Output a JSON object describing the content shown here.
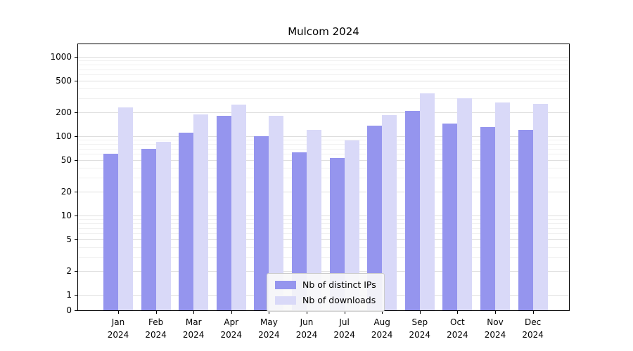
{
  "chart_data": {
    "type": "bar",
    "title": "Mulcom 2024",
    "scale": "symlog",
    "grid": true,
    "legend_position": "lower center inside plot",
    "categories": [
      "Jan 2024",
      "Feb 2024",
      "Mar 2024",
      "Apr 2024",
      "May 2024",
      "Jun 2024",
      "Jul 2024",
      "Aug 2024",
      "Sep 2024",
      "Oct 2024",
      "Nov 2024",
      "Dec 2024"
    ],
    "series": [
      {
        "name": "Nb of distinct IPs",
        "color": "#9595ee",
        "values": [
          60,
          70,
          110,
          180,
          100,
          62,
          53,
          135,
          210,
          145,
          130,
          120
        ]
      },
      {
        "name": "Nb of downloads",
        "color": "#d9d9f8",
        "values": [
          230,
          85,
          190,
          250,
          180,
          120,
          88,
          185,
          350,
          300,
          265,
          255
        ]
      }
    ],
    "yticks": [
      0,
      1,
      2,
      5,
      10,
      20,
      50,
      100,
      200,
      500,
      1000
    ],
    "ylim": [
      0,
      1500
    ],
    "xlabel": "",
    "ylabel": ""
  }
}
